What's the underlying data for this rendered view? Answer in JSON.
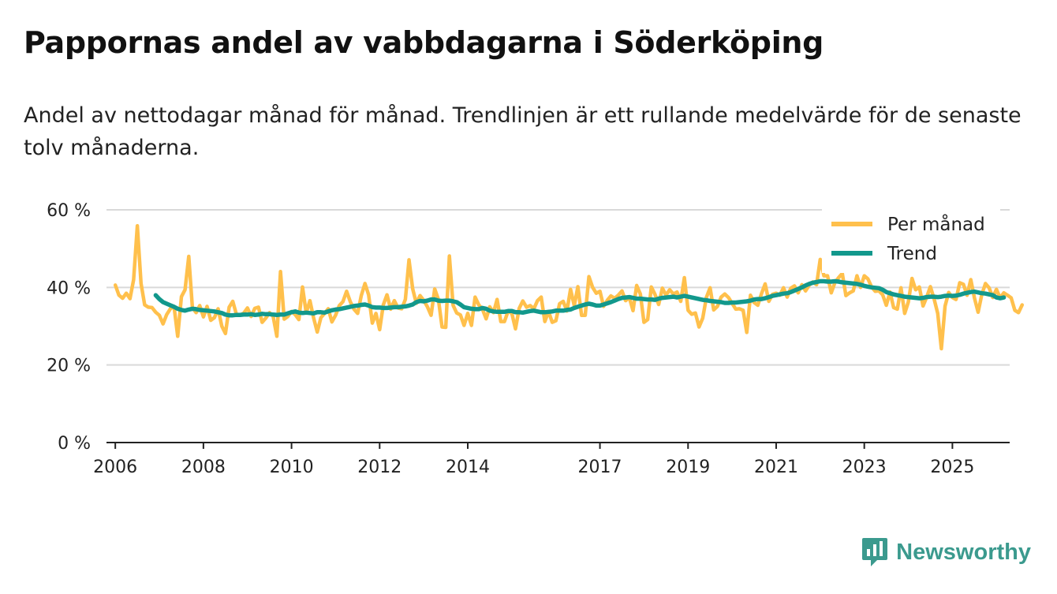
{
  "title": "Pappornas andel av vabbdagarna i Söderköping",
  "subtitle": "Andel av nettodagar månad för månad. Trendlinjen är ett rullande medelvärde för de senaste tolv månaderna.",
  "brand": {
    "name": "Newsworthy",
    "icon": "newsworthy-logo-icon"
  },
  "colors": {
    "monthly": "#ffc04c",
    "trend": "#12988c",
    "grid": "#d9d9d9",
    "axis": "#222222",
    "brand": "#3b9a8e"
  },
  "chart_data": {
    "type": "line",
    "title": "Pappornas andel av vabbdagarna i Söderköping",
    "xlabel": "",
    "ylabel": "",
    "xlim": [
      2005.8,
      2026.3
    ],
    "ylim": [
      0,
      60
    ],
    "y_ticks": [
      0,
      20,
      40,
      60
    ],
    "y_tick_labels": [
      "0 %",
      "20 %",
      "40 %",
      "60 %"
    ],
    "x_ticks": [
      2006,
      2008,
      2010,
      2012,
      2014,
      2017,
      2019,
      2021,
      2023,
      2025
    ],
    "x_tick_labels": [
      "2006",
      "2008",
      "2010",
      "2012",
      "2014",
      "2017",
      "2019",
      "2021",
      "2023",
      "2025"
    ],
    "grid": true,
    "legend_position": "top-right",
    "series": [
      {
        "name": "Per månad",
        "color": "#ffc04c",
        "start_year": 2006.0,
        "step_months": 1,
        "values": [
          40.6,
          38.0,
          37.2,
          38.5,
          37.1,
          42.0,
          55.9,
          41.0,
          35.5,
          34.9,
          34.8,
          33.6,
          32.8,
          30.6,
          33.0,
          34.5,
          35.1,
          27.4,
          37.6,
          39.4,
          48.0,
          34.8,
          33.5,
          35.3,
          32.4,
          35.1,
          31.5,
          32.2,
          34.5,
          30.0,
          28.1,
          34.9,
          36.4,
          33.0,
          32.8,
          33.4,
          34.7,
          32.5,
          34.6,
          34.9,
          31.0,
          32.1,
          33.5,
          32.5,
          27.4,
          44.1,
          31.8,
          32.5,
          33.8,
          33.0,
          31.7,
          40.1,
          33.4,
          36.6,
          32.2,
          28.5,
          32.2,
          33.3,
          34.5,
          31.1,
          32.8,
          35.3,
          36.3,
          39.0,
          36.3,
          34.4,
          33.3,
          37.9,
          41.0,
          38.1,
          30.8,
          33.3,
          29.1,
          35.5,
          38.1,
          34.4,
          36.6,
          34.7,
          34.5,
          36.9,
          47.1,
          39.6,
          35.9,
          37.9,
          36.7,
          35.0,
          32.8,
          39.6,
          36.9,
          29.8,
          29.7,
          48.1,
          35.4,
          33.4,
          32.9,
          30.2,
          33.3,
          30.2,
          37.5,
          35.5,
          34.4,
          31.9,
          35.0,
          33.5,
          36.9,
          31.2,
          31.2,
          33.9,
          33.3,
          29.3,
          34.6,
          36.5,
          34.9,
          35.3,
          34.5,
          36.6,
          37.5,
          31.2,
          33.8,
          31.0,
          31.4,
          35.8,
          36.4,
          33.9,
          39.5,
          35.3,
          40.2,
          32.8,
          32.8,
          42.8,
          40.0,
          38.5,
          39.0,
          35.1,
          36.7,
          37.8,
          37.2,
          38.0,
          39.1,
          36.6,
          37.4,
          34.0,
          40.5,
          38.3,
          31.0,
          31.7,
          40.1,
          38.2,
          35.6,
          39.8,
          38.0,
          39.4,
          38.3,
          38.8,
          36.4,
          42.5,
          34.1,
          33.1,
          33.4,
          29.8,
          32.1,
          37.4,
          39.9,
          34.2,
          35.1,
          37.5,
          38.3,
          37.4,
          35.9,
          34.4,
          34.5,
          34.1,
          28.4,
          38.0,
          36.1,
          35.4,
          38.4,
          40.9,
          36.4,
          38.2,
          38.5,
          38.0,
          39.9,
          37.5,
          39.8,
          40.4,
          38.6,
          40.7,
          39.1,
          40.6,
          41.4,
          40.7,
          47.2,
          43.0,
          43.0,
          38.6,
          41.2,
          42.5,
          43.6,
          37.9,
          38.6,
          39.1,
          43.0,
          40.0,
          43.0,
          42.2,
          40.1,
          39.0,
          39.1,
          38.1,
          35.4,
          38.8,
          34.8,
          34.4,
          39.9,
          33.3,
          36.2,
          42.3,
          39.4,
          40.1,
          35.2,
          37.5,
          40.2,
          37.1,
          33.3,
          24.2,
          35.2,
          38.7,
          37.4,
          36.9,
          41.2,
          40.8,
          38.0,
          42.0,
          37.3,
          33.6,
          38.1,
          41.0,
          39.9,
          37.4,
          39.5,
          37.3,
          38.6,
          38.0,
          37.3,
          34.1,
          33.5,
          35.5
        ]
      },
      {
        "name": "Trend",
        "color": "#12988c",
        "start_year": 2006.9167,
        "step_months": 1,
        "values": [
          38.0,
          37.0,
          36.2,
          35.8,
          35.4,
          35.0,
          34.5,
          34.2,
          34.0,
          34.3,
          34.5,
          34.4,
          34.2,
          34.1,
          34.0,
          33.9,
          33.8,
          33.6,
          33.4,
          33.0,
          32.8,
          32.8,
          32.9,
          32.9,
          33.0,
          33.0,
          33.1,
          32.9,
          33.0,
          33.2,
          33.1,
          33.1,
          33.0,
          32.9,
          33.0,
          33.0,
          33.3,
          33.6,
          33.8,
          33.5,
          33.4,
          33.5,
          33.4,
          33.3,
          33.6,
          33.6,
          33.5,
          33.8,
          34.1,
          34.3,
          34.4,
          34.6,
          34.8,
          35.0,
          35.2,
          35.3,
          35.5,
          35.6,
          35.3,
          34.9,
          34.8,
          34.8,
          34.7,
          34.7,
          34.8,
          34.9,
          34.9,
          35.0,
          35.1,
          35.3,
          35.6,
          36.2,
          36.5,
          36.4,
          36.6,
          36.9,
          36.9,
          36.6,
          36.5,
          36.6,
          36.6,
          36.4,
          36.2,
          35.6,
          34.9,
          34.7,
          34.5,
          34.4,
          34.4,
          34.7,
          34.5,
          34.0,
          33.8,
          33.7,
          33.7,
          33.7,
          33.9,
          33.9,
          33.6,
          33.6,
          33.5,
          33.7,
          33.9,
          34.0,
          33.8,
          33.6,
          33.6,
          33.7,
          33.8,
          34.0,
          34.0,
          34.0,
          34.2,
          34.3,
          34.7,
          35.0,
          35.3,
          35.6,
          35.8,
          35.6,
          35.3,
          35.3,
          35.6,
          35.9,
          36.2,
          36.6,
          37.0,
          37.3,
          37.4,
          37.5,
          37.3,
          37.1,
          37.1,
          37.0,
          36.9,
          36.9,
          36.8,
          37.1,
          37.3,
          37.4,
          37.5,
          37.6,
          37.4,
          37.6,
          37.8,
          37.6,
          37.4,
          37.2,
          37.0,
          36.8,
          36.7,
          36.5,
          36.4,
          36.3,
          36.2,
          36.0,
          36.0,
          36.1,
          36.1,
          36.2,
          36.3,
          36.4,
          36.6,
          36.9,
          37.0,
          37.0,
          37.2,
          37.5,
          37.8,
          38.0,
          38.2,
          38.4,
          38.5,
          38.8,
          39.2,
          39.6,
          40.0,
          40.5,
          40.9,
          41.2,
          41.4,
          41.6,
          41.6,
          41.5,
          41.5,
          41.6,
          41.5,
          41.3,
          41.2,
          41.1,
          41.0,
          40.9,
          40.7,
          40.4,
          40.2,
          40.0,
          39.9,
          39.8,
          39.4,
          38.8,
          38.5,
          38.2,
          38.0,
          37.8,
          37.6,
          37.5,
          37.4,
          37.3,
          37.2,
          37.3,
          37.5,
          37.6,
          37.6,
          37.5,
          37.6,
          37.8,
          37.9,
          37.8,
          37.9,
          38.1,
          38.4,
          38.6,
          38.8,
          38.9,
          38.7,
          38.5,
          38.4,
          38.2,
          38.0,
          37.4,
          37.2,
          37.4
        ]
      }
    ]
  }
}
